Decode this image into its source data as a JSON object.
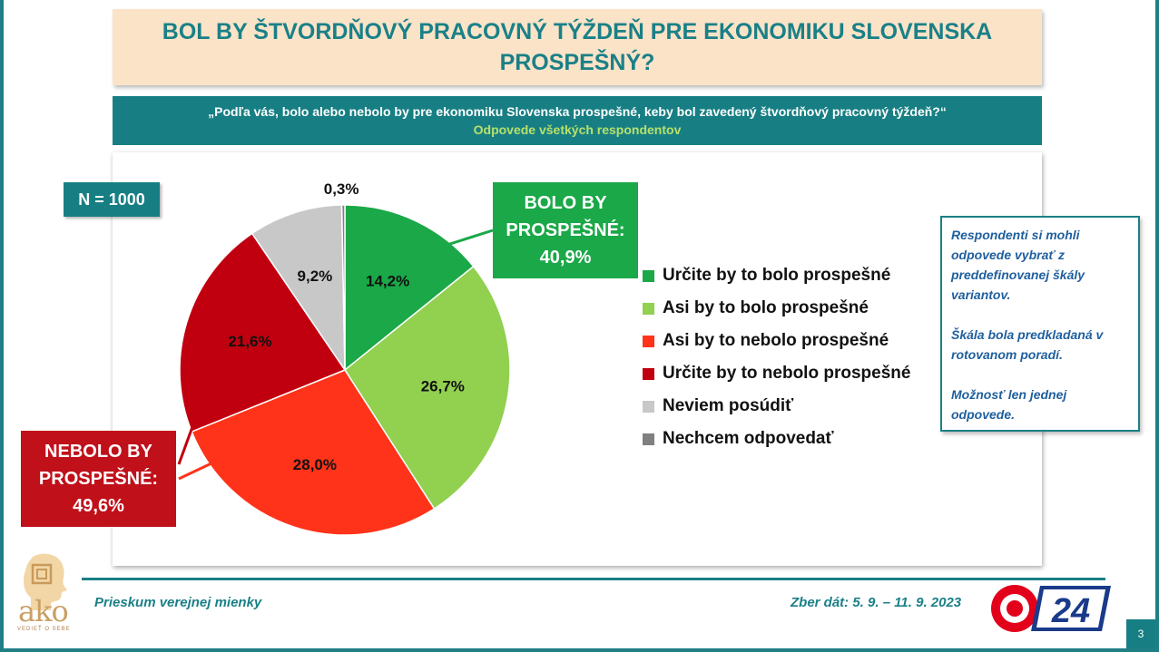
{
  "title": "BOL BY ŠTVORDŇOVÝ PRACOVNÝ TÝŽDEŇ PRE EKONOMIKU SLOVENSKA PROSPEŠNÝ?",
  "question": "„Podľa vás, bolo alebo nebolo by pre ekonomiku Slovenska prospešné, keby bol zavedený štvordňový pracovný týždeň?“",
  "question_sub": "Odpovede všetkých respondentov",
  "n_badge": "N = 1000",
  "callout_yes": {
    "line1": "BOLO BY",
    "line2": "PROSPEŠNÉ:",
    "line3": "40,9%"
  },
  "callout_no": {
    "line1": "NEBOLO BY",
    "line2": "PROSPEŠNÉ:",
    "line3": "49,6%"
  },
  "note": {
    "p1": "Respondenti si mohli odpovede vybrať z preddefinovanej škály variantov.",
    "p2": "Škála bola predkladaná v rotovanom poradí.",
    "p3": "Možnosť len jednej odpovede."
  },
  "footer": {
    "left": "Prieskum verejnej mienky",
    "right": "Zber dát: 5. 9. – 11. 9. 2023",
    "page": "3"
  },
  "logo": {
    "name": "ako",
    "tagline": "VEDIEŤ O SEBE"
  },
  "tv_logo": {
    "text": "24"
  },
  "chart_data": {
    "type": "pie",
    "start_angle_deg": 0,
    "direction": "clockwise",
    "slices": [
      {
        "label": "Určite by to bolo prospešné",
        "value": 14.2,
        "display": "14,2%",
        "color": "#1aa848"
      },
      {
        "label": "Asi by to bolo prospešné",
        "value": 26.7,
        "display": "26,7%",
        "color": "#92d050"
      },
      {
        "label": "Asi by to nebolo prospešné",
        "value": 28.0,
        "display": "28,0%",
        "color": "#ff3319"
      },
      {
        "label": "Určite by to nebolo prospešné",
        "value": 21.6,
        "display": "21,6%",
        "color": "#c0000f"
      },
      {
        "label": "Neviem posúdiť",
        "value": 9.2,
        "display": "9,2%",
        "color": "#c8c8c8"
      },
      {
        "label": "Nechcem odpovedať",
        "value": 0.3,
        "display": "0,3%",
        "color": "#808080"
      }
    ],
    "legend_position": "right"
  }
}
